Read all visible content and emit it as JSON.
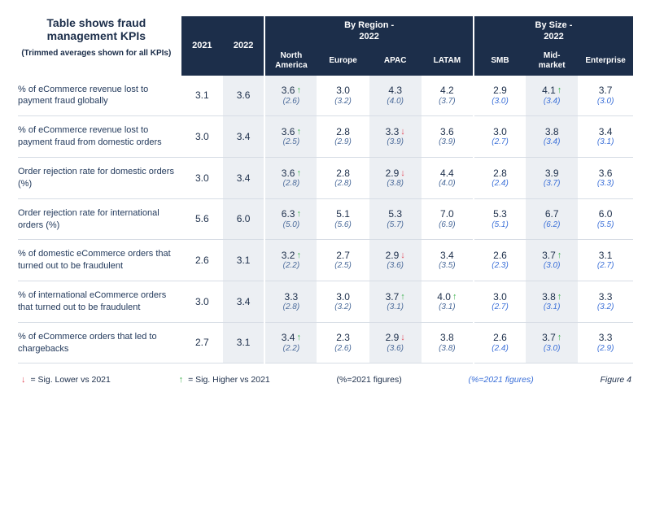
{
  "title": "Table shows fraud management KPIs",
  "subtitle": "(Trimmed averages shown for all KPIs)",
  "headers": {
    "year1": "2021",
    "year2": "2022",
    "group_region": "By Region -\n2022",
    "group_size": "By Size -\n2022",
    "region": {
      "na": "North\nAmerica",
      "eu": "Europe",
      "apac": "APAC",
      "latam": "LATAM"
    },
    "size": {
      "smb": "SMB",
      "mid": "Mid-\nmarket",
      "ent": "Enterprise"
    }
  },
  "colwidths": {
    "label": 172,
    "year": 44,
    "region": 55,
    "size": 55
  },
  "colors": {
    "header_bg": "#1c2e4a",
    "shade_bg": "#eceff3",
    "text": "#1c2e4a",
    "sub_black": "#4a6a9a",
    "sub_blue": "#3a6fd8",
    "arrow_up": "#3fb24f",
    "arrow_down": "#e24b5a",
    "row_border": "#d7dde5"
  },
  "rows": [
    {
      "label": "% of eCommerce revenue lost to payment fraud globally",
      "y2021": "3.1",
      "y2022": "3.6",
      "region": [
        {
          "v": "3.6",
          "s": "(2.6)",
          "arr": "up"
        },
        {
          "v": "3.0",
          "s": "(3.2)"
        },
        {
          "v": "4.3",
          "s": "(4.0)"
        },
        {
          "v": "4.2",
          "s": "(3.7)"
        }
      ],
      "size": [
        {
          "v": "2.9",
          "s": "(3.0)"
        },
        {
          "v": "4.1",
          "s": "(3.4)",
          "arr": "up"
        },
        {
          "v": "3.7",
          "s": "(3.0)"
        }
      ]
    },
    {
      "label": "% of eCommerce revenue lost to payment fraud from domestic orders",
      "y2021": "3.0",
      "y2022": "3.4",
      "region": [
        {
          "v": "3.6",
          "s": "(2.5)",
          "arr": "up"
        },
        {
          "v": "2.8",
          "s": "(2.9)"
        },
        {
          "v": "3.3",
          "s": "(3.9)",
          "arr": "down"
        },
        {
          "v": "3.6",
          "s": "(3.9)"
        }
      ],
      "size": [
        {
          "v": "3.0",
          "s": "(2.7)"
        },
        {
          "v": "3.8",
          "s": "(3.4)"
        },
        {
          "v": "3.4",
          "s": "(3.1)"
        }
      ]
    },
    {
      "label": "Order rejection rate for domestic orders (%)",
      "y2021": "3.0",
      "y2022": "3.4",
      "region": [
        {
          "v": "3.6",
          "s": "(2.8)",
          "arr": "up"
        },
        {
          "v": "2.8",
          "s": "(2.8)"
        },
        {
          "v": "2.9",
          "s": "(3.8)",
          "arr": "down"
        },
        {
          "v": "4.4",
          "s": "(4.0)"
        }
      ],
      "size": [
        {
          "v": "2.8",
          "s": "(2.4)"
        },
        {
          "v": "3.9",
          "s": "(3.7)"
        },
        {
          "v": "3.6",
          "s": "(3.3)"
        }
      ]
    },
    {
      "label": "Order rejection rate for international orders (%)",
      "y2021": "5.6",
      "y2022": "6.0",
      "region": [
        {
          "v": "6.3",
          "s": "(5.0)",
          "arr": "up"
        },
        {
          "v": "5.1",
          "s": "(5.6)"
        },
        {
          "v": "5.3",
          "s": "(5.7)"
        },
        {
          "v": "7.0",
          "s": "(6.9)"
        }
      ],
      "size": [
        {
          "v": "5.3",
          "s": "(5.1)"
        },
        {
          "v": "6.7",
          "s": "(6.2)"
        },
        {
          "v": "6.0",
          "s": "(5.5)"
        }
      ]
    },
    {
      "label": "% of domestic eCommerce orders that turned out to be fraudulent",
      "y2021": "2.6",
      "y2022": "3.1",
      "region": [
        {
          "v": "3.2",
          "s": "(2.2)",
          "arr": "up"
        },
        {
          "v": "2.7",
          "s": "(2.5)"
        },
        {
          "v": "2.9",
          "s": "(3.6)",
          "arr": "down"
        },
        {
          "v": "3.4",
          "s": "(3.5)"
        }
      ],
      "size": [
        {
          "v": "2.6",
          "s": "(2.3)"
        },
        {
          "v": "3.7",
          "s": "(3.0)",
          "arr": "up"
        },
        {
          "v": "3.1",
          "s": "(2.7)"
        }
      ]
    },
    {
      "label": "% of international eCommerce orders that turned out to be fraudulent",
      "y2021": "3.0",
      "y2022": "3.4",
      "region": [
        {
          "v": "3.3",
          "s": "(2.8)"
        },
        {
          "v": "3.0",
          "s": "(3.2)"
        },
        {
          "v": "3.7",
          "s": "(3.1)",
          "arr": "up"
        },
        {
          "v": "4.0",
          "s": "(3.1)",
          "arr": "up"
        }
      ],
      "size": [
        {
          "v": "3.0",
          "s": "(2.7)"
        },
        {
          "v": "3.8",
          "s": "(3.1)",
          "arr": "up"
        },
        {
          "v": "3.3",
          "s": "(3.2)"
        }
      ]
    },
    {
      "label": "% of eCommerce orders that led to chargebacks",
      "y2021": "2.7",
      "y2022": "3.1",
      "region": [
        {
          "v": "3.4",
          "s": "(2.2)",
          "arr": "up"
        },
        {
          "v": "2.3",
          "s": "(2.6)"
        },
        {
          "v": "2.9",
          "s": "(3.6)",
          "arr": "down"
        },
        {
          "v": "3.8",
          "s": "(3.8)"
        }
      ],
      "size": [
        {
          "v": "2.6",
          "s": "(2.4)"
        },
        {
          "v": "3.7",
          "s": "(3.0)",
          "arr": "up"
        },
        {
          "v": "3.3",
          "s": "(2.9)"
        }
      ]
    }
  ],
  "legend": {
    "lower": "= Sig. Lower vs 2021",
    "higher": "= Sig. Higher vs 2021",
    "note_black": "(%=2021 figures)",
    "note_blue": "(%=2021 figures)",
    "figure": "Figure 4"
  }
}
